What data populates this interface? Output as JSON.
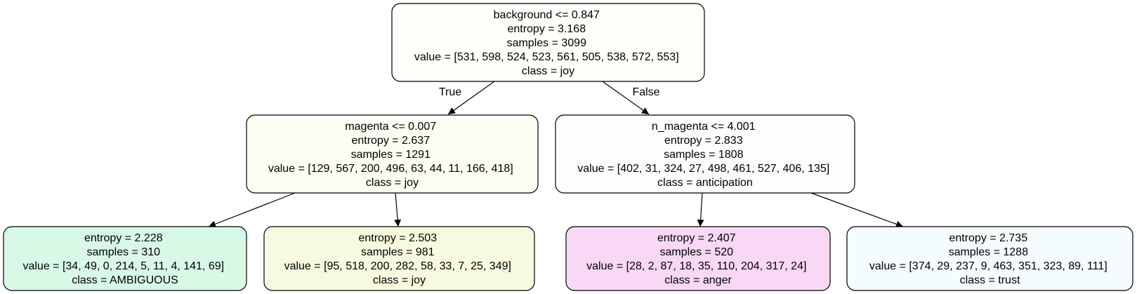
{
  "nodes": [
    {
      "id": "root",
      "lines": [
        "background <= 0.847",
        "entropy = 3.168",
        "samples = 3099",
        "value = [531, 598, 524, 523, 561, 505, 538, 572, 553]",
        "class = joy"
      ],
      "fill": "#fefefa"
    },
    {
      "id": "left",
      "lines": [
        "magenta <= 0.007",
        "entropy = 2.637",
        "samples = 1291",
        "value = [129, 567, 200, 496, 63, 44, 11, 166, 418]",
        "class = joy"
      ],
      "fill": "#fdfdf3"
    },
    {
      "id": "right",
      "lines": [
        "n_magenta <= 4.001",
        "entropy = 2.833",
        "samples = 1808",
        "value = [402, 31, 324, 27, 498, 461, 527, 406, 135]",
        "class = anticipation"
      ],
      "fill": "#fcfdff"
    },
    {
      "id": "ll",
      "lines": [
        "entropy = 2.228",
        "samples = 310",
        "value = [34, 49, 0, 214, 5, 11, 4, 141, 69]",
        "class = AMBIGUOUS"
      ],
      "fill": "#d9f9e7"
    },
    {
      "id": "lr",
      "lines": [
        "entropy = 2.503",
        "samples = 981",
        "value = [95, 518, 200, 282, 58, 33, 7, 25, 349]",
        "class = joy"
      ],
      "fill": "#f8fae0"
    },
    {
      "id": "rl",
      "lines": [
        "entropy = 2.407",
        "samples = 520",
        "value = [28, 2, 87, 18, 35, 110, 204, 317, 24]",
        "class = anger"
      ],
      "fill": "#f9d8f5"
    },
    {
      "id": "rr",
      "lines": [
        "entropy = 2.735",
        "samples = 1288",
        "value = [374, 29, 237, 9, 463, 351, 323, 89, 111]",
        "class = trust"
      ],
      "fill": "#f4fcfd"
    }
  ],
  "edge_labels": {
    "true": "True",
    "false": "False"
  },
  "colors": {
    "stroke": "#000000"
  }
}
